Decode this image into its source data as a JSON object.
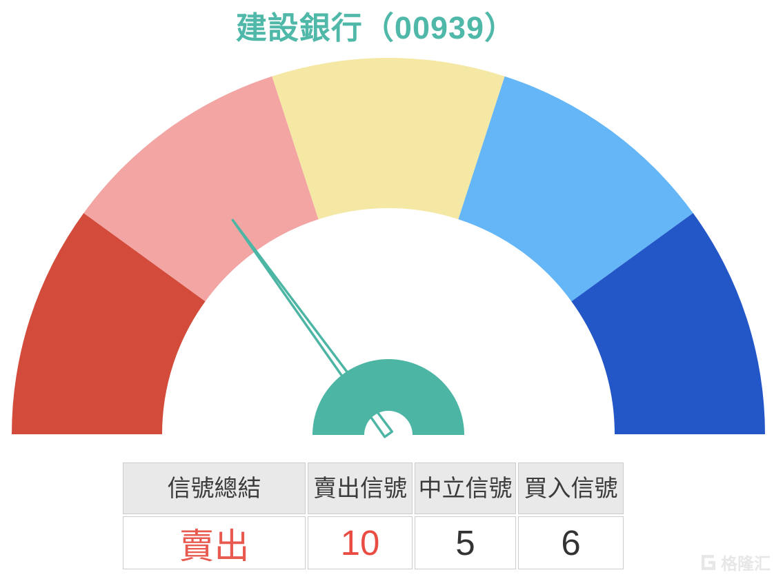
{
  "title": {
    "text": "建設銀行（00939）",
    "color": "#4FB8A8"
  },
  "chart_data": {
    "type": "gauge",
    "title": "建設銀行（00939）",
    "arc_span_deg": 180,
    "segments": [
      {
        "name": "strong-sell",
        "color": "#D24B3B"
      },
      {
        "name": "sell",
        "color": "#F2A5A3"
      },
      {
        "name": "neutral",
        "color": "#F5E7A4"
      },
      {
        "name": "buy",
        "color": "#65B6F6"
      },
      {
        "name": "strong-buy",
        "color": "#2356C6"
      }
    ],
    "needle": {
      "angle_deg": 126,
      "points_to_segment": "sell",
      "color": "#4CB5A4",
      "fill": "#FFFFFF"
    },
    "hub_color": "#4CB5A4",
    "signals": {
      "summary": "賣出",
      "sell": 10,
      "neutral": 5,
      "buy": 6
    }
  },
  "table": {
    "headers": [
      {
        "label": "信號總結"
      },
      {
        "label": "賣出信號"
      },
      {
        "label": "中立信號"
      },
      {
        "label": "買入信號"
      }
    ],
    "row": [
      {
        "text": "賣出",
        "color": "#E85A50"
      },
      {
        "text": "10",
        "color": "#E84C42"
      },
      {
        "text": "5",
        "color": "#333333"
      },
      {
        "text": "6",
        "color": "#333333"
      }
    ],
    "header_bg": "#E9E9E9",
    "border_color": "#CCCCCC"
  },
  "watermark": {
    "text": "格隆汇",
    "logo": "gelonghui-G",
    "color": "#E7E7E7"
  }
}
